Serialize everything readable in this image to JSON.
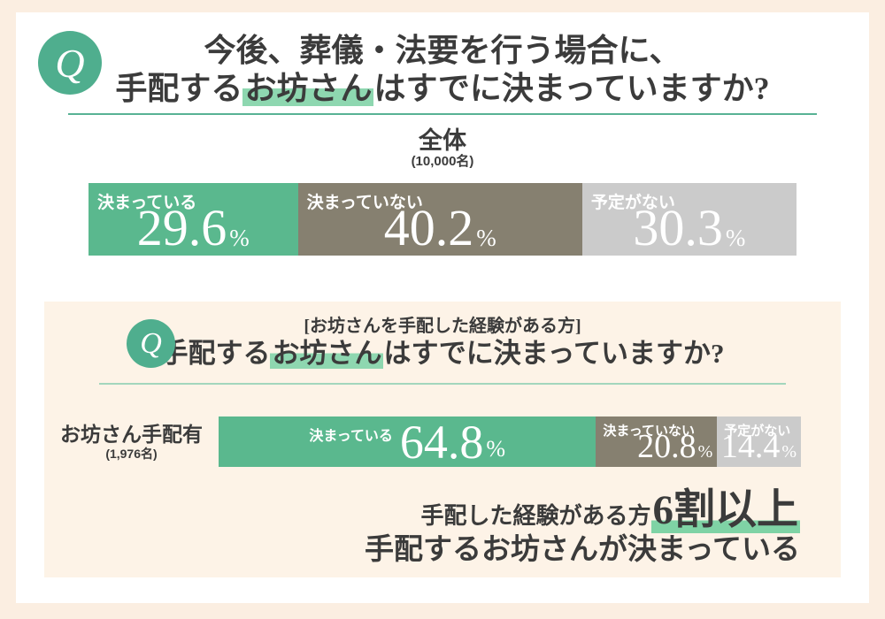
{
  "colors": {
    "accent_teal": "#4fae8e",
    "divider_top": "#58b294",
    "divider_panel": "#a3d6bd",
    "highlight_green": "#8ed7b0",
    "underline_green": "#7fd3a5",
    "bar_green": "#5ab88e",
    "bar_gray_brown": "#868070",
    "bar_light_gray": "#cbcbcb",
    "outer_border_cream": "#fbeee1",
    "panel_cream": "#fdf3e7",
    "text_dark": "#3b3b3b"
  },
  "q1_section": {
    "q_badge": "Q",
    "title_line1": "今後、葬儀・法要を行う場合に、",
    "title_line2_pre": "手配する",
    "title_line2_mark": "お坊さん",
    "title_line2_post": "はすでに決まっていますか?"
  },
  "q2_section": {
    "q_badge": "Q",
    "bracket_note": "[お坊さんを手配した経験がある方]",
    "title_pre": "手配する",
    "title_mark": "お坊さん",
    "title_post": "はすでに決まっていますか?"
  },
  "conclusion": {
    "line1_pre": "手配した経験がある方",
    "line1_mark": "6割以上",
    "line2": "手配するお坊さんが決まっている"
  },
  "chart_data": [
    {
      "type": "bar",
      "orientation": "horizontal_stacked_100pct",
      "group_label": "全体",
      "group_count": "(10,000名)",
      "categories": [
        "決まっている",
        "決まっていない",
        "予定がない"
      ],
      "values": [
        29.6,
        40.2,
        30.3
      ],
      "unit": "%",
      "colors": [
        "#5ab88e",
        "#868070",
        "#cbcbcb"
      ],
      "label_layout": [
        "corner",
        "corner",
        "corner"
      ]
    },
    {
      "type": "bar",
      "orientation": "horizontal_stacked_100pct",
      "group_label": "お坊さん手配有",
      "group_count": "(1,976名)",
      "categories": [
        "決まっている",
        "決まっていない",
        "予定がない"
      ],
      "values": [
        64.8,
        20.8,
        14.4
      ],
      "unit": "%",
      "colors": [
        "#5ab88e",
        "#868070",
        "#cbcbcb"
      ],
      "label_layout": [
        "inline",
        "corner",
        "corner"
      ]
    }
  ]
}
